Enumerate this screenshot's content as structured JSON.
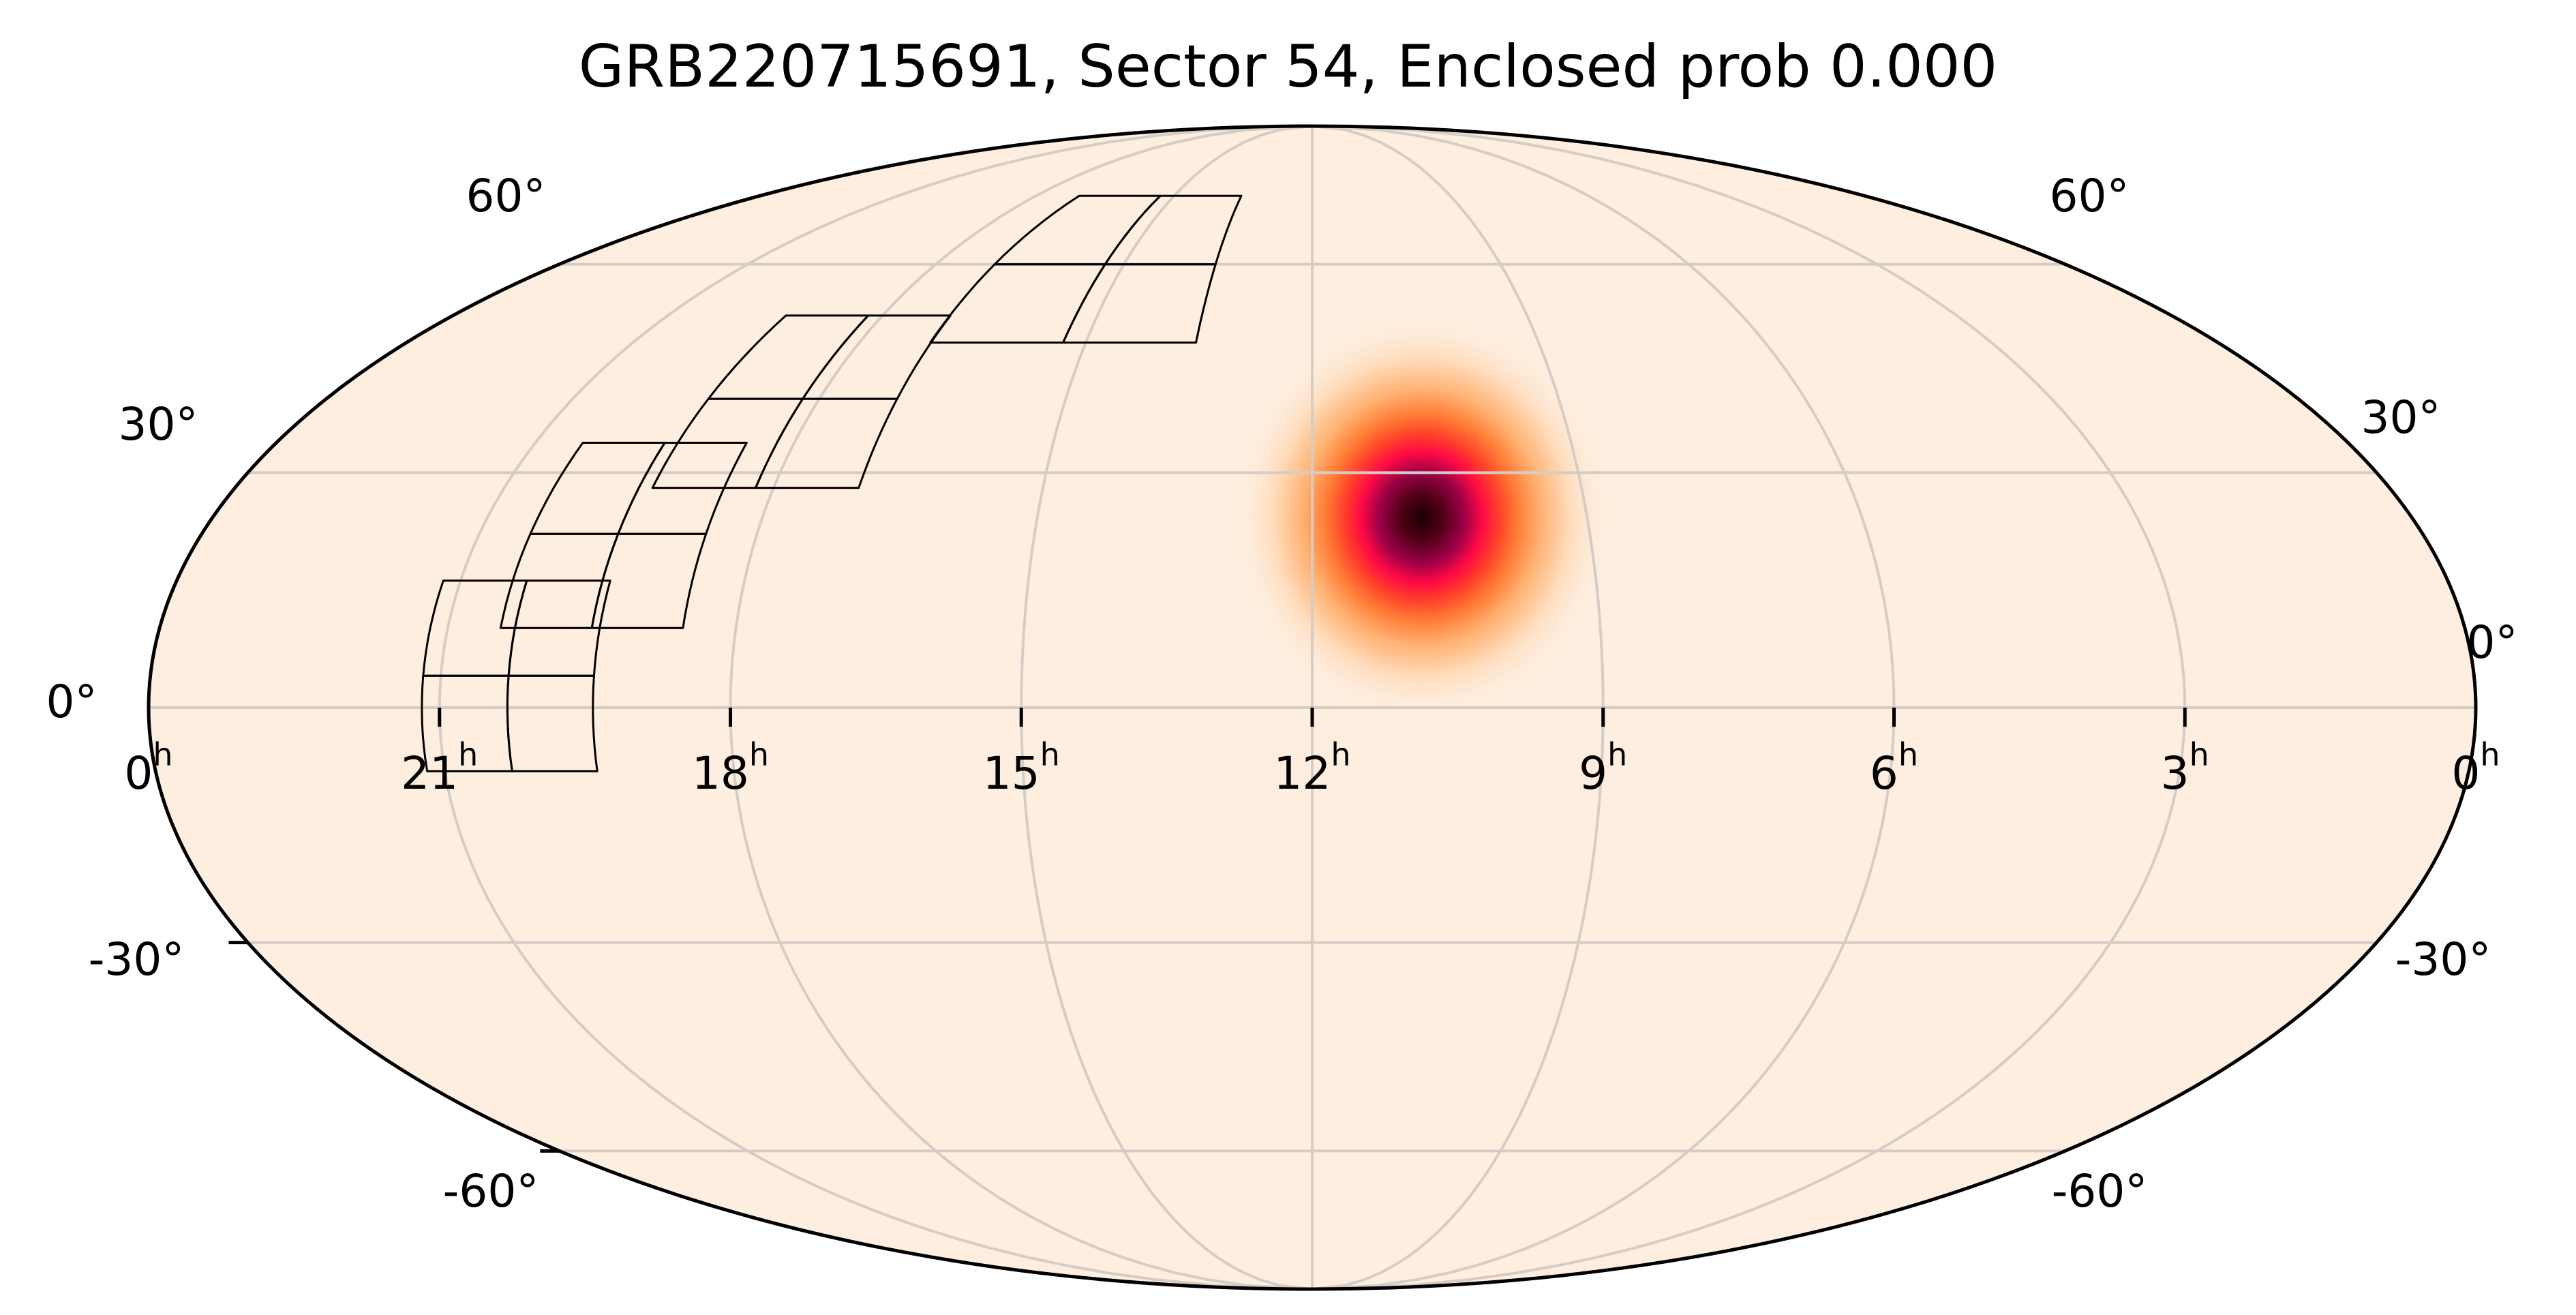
{
  "chart_data": {
    "type": "heatmap",
    "projection": "mollweide",
    "title": "GRB220715691, Sector 54, Enclosed prob 0.000",
    "grb_name": "GRB220715691",
    "sector": 54,
    "enclosed_prob": "0.000",
    "xlabel": "",
    "ylabel": "",
    "grid": true,
    "ra_tick_labels": [
      "0h",
      "21h",
      "18h",
      "15h",
      "12h",
      "9h",
      "6h",
      "3h",
      "0h"
    ],
    "ra_ticks_hours": [
      24,
      21,
      18,
      15,
      12,
      9,
      6,
      3,
      0
    ],
    "dec_ticks_deg": [
      -60,
      -30,
      0,
      30,
      60
    ],
    "dec_tick_labels_left": [
      "60°",
      "30°",
      "0°",
      "-30°",
      "-60°"
    ],
    "dec_tick_labels_right": [
      "60°",
      "30°",
      "0°",
      "-30°",
      "-60°"
    ],
    "xlim_hours": [
      24,
      0
    ],
    "ylim_deg": [
      -90,
      90
    ],
    "colormap": "magma-like (cream → orange → red → dark maroon)",
    "probability_peak": {
      "ra_hours": 10.8,
      "dec_deg": 25,
      "sigma_deg": 10
    },
    "tess_footprint": {
      "sector": 54,
      "cameras": 4,
      "ccds_per_camera": 4,
      "ra_range_hours": [
        13.2,
        21.3
      ],
      "dec_range_deg": [
        -6,
        71
      ]
    }
  },
  "colors": {
    "background": "#ffffff",
    "sky_fill": "#feeee0",
    "grid": "#d5ccc6",
    "outline": "#000000",
    "footprint": "#000000",
    "blob_stops": [
      "#1a0005",
      "#5b0018",
      "#a8004a",
      "#ff0a46",
      "#ff4b2a",
      "#ff8a3d",
      "#ffc08c",
      "#feeee0"
    ]
  }
}
